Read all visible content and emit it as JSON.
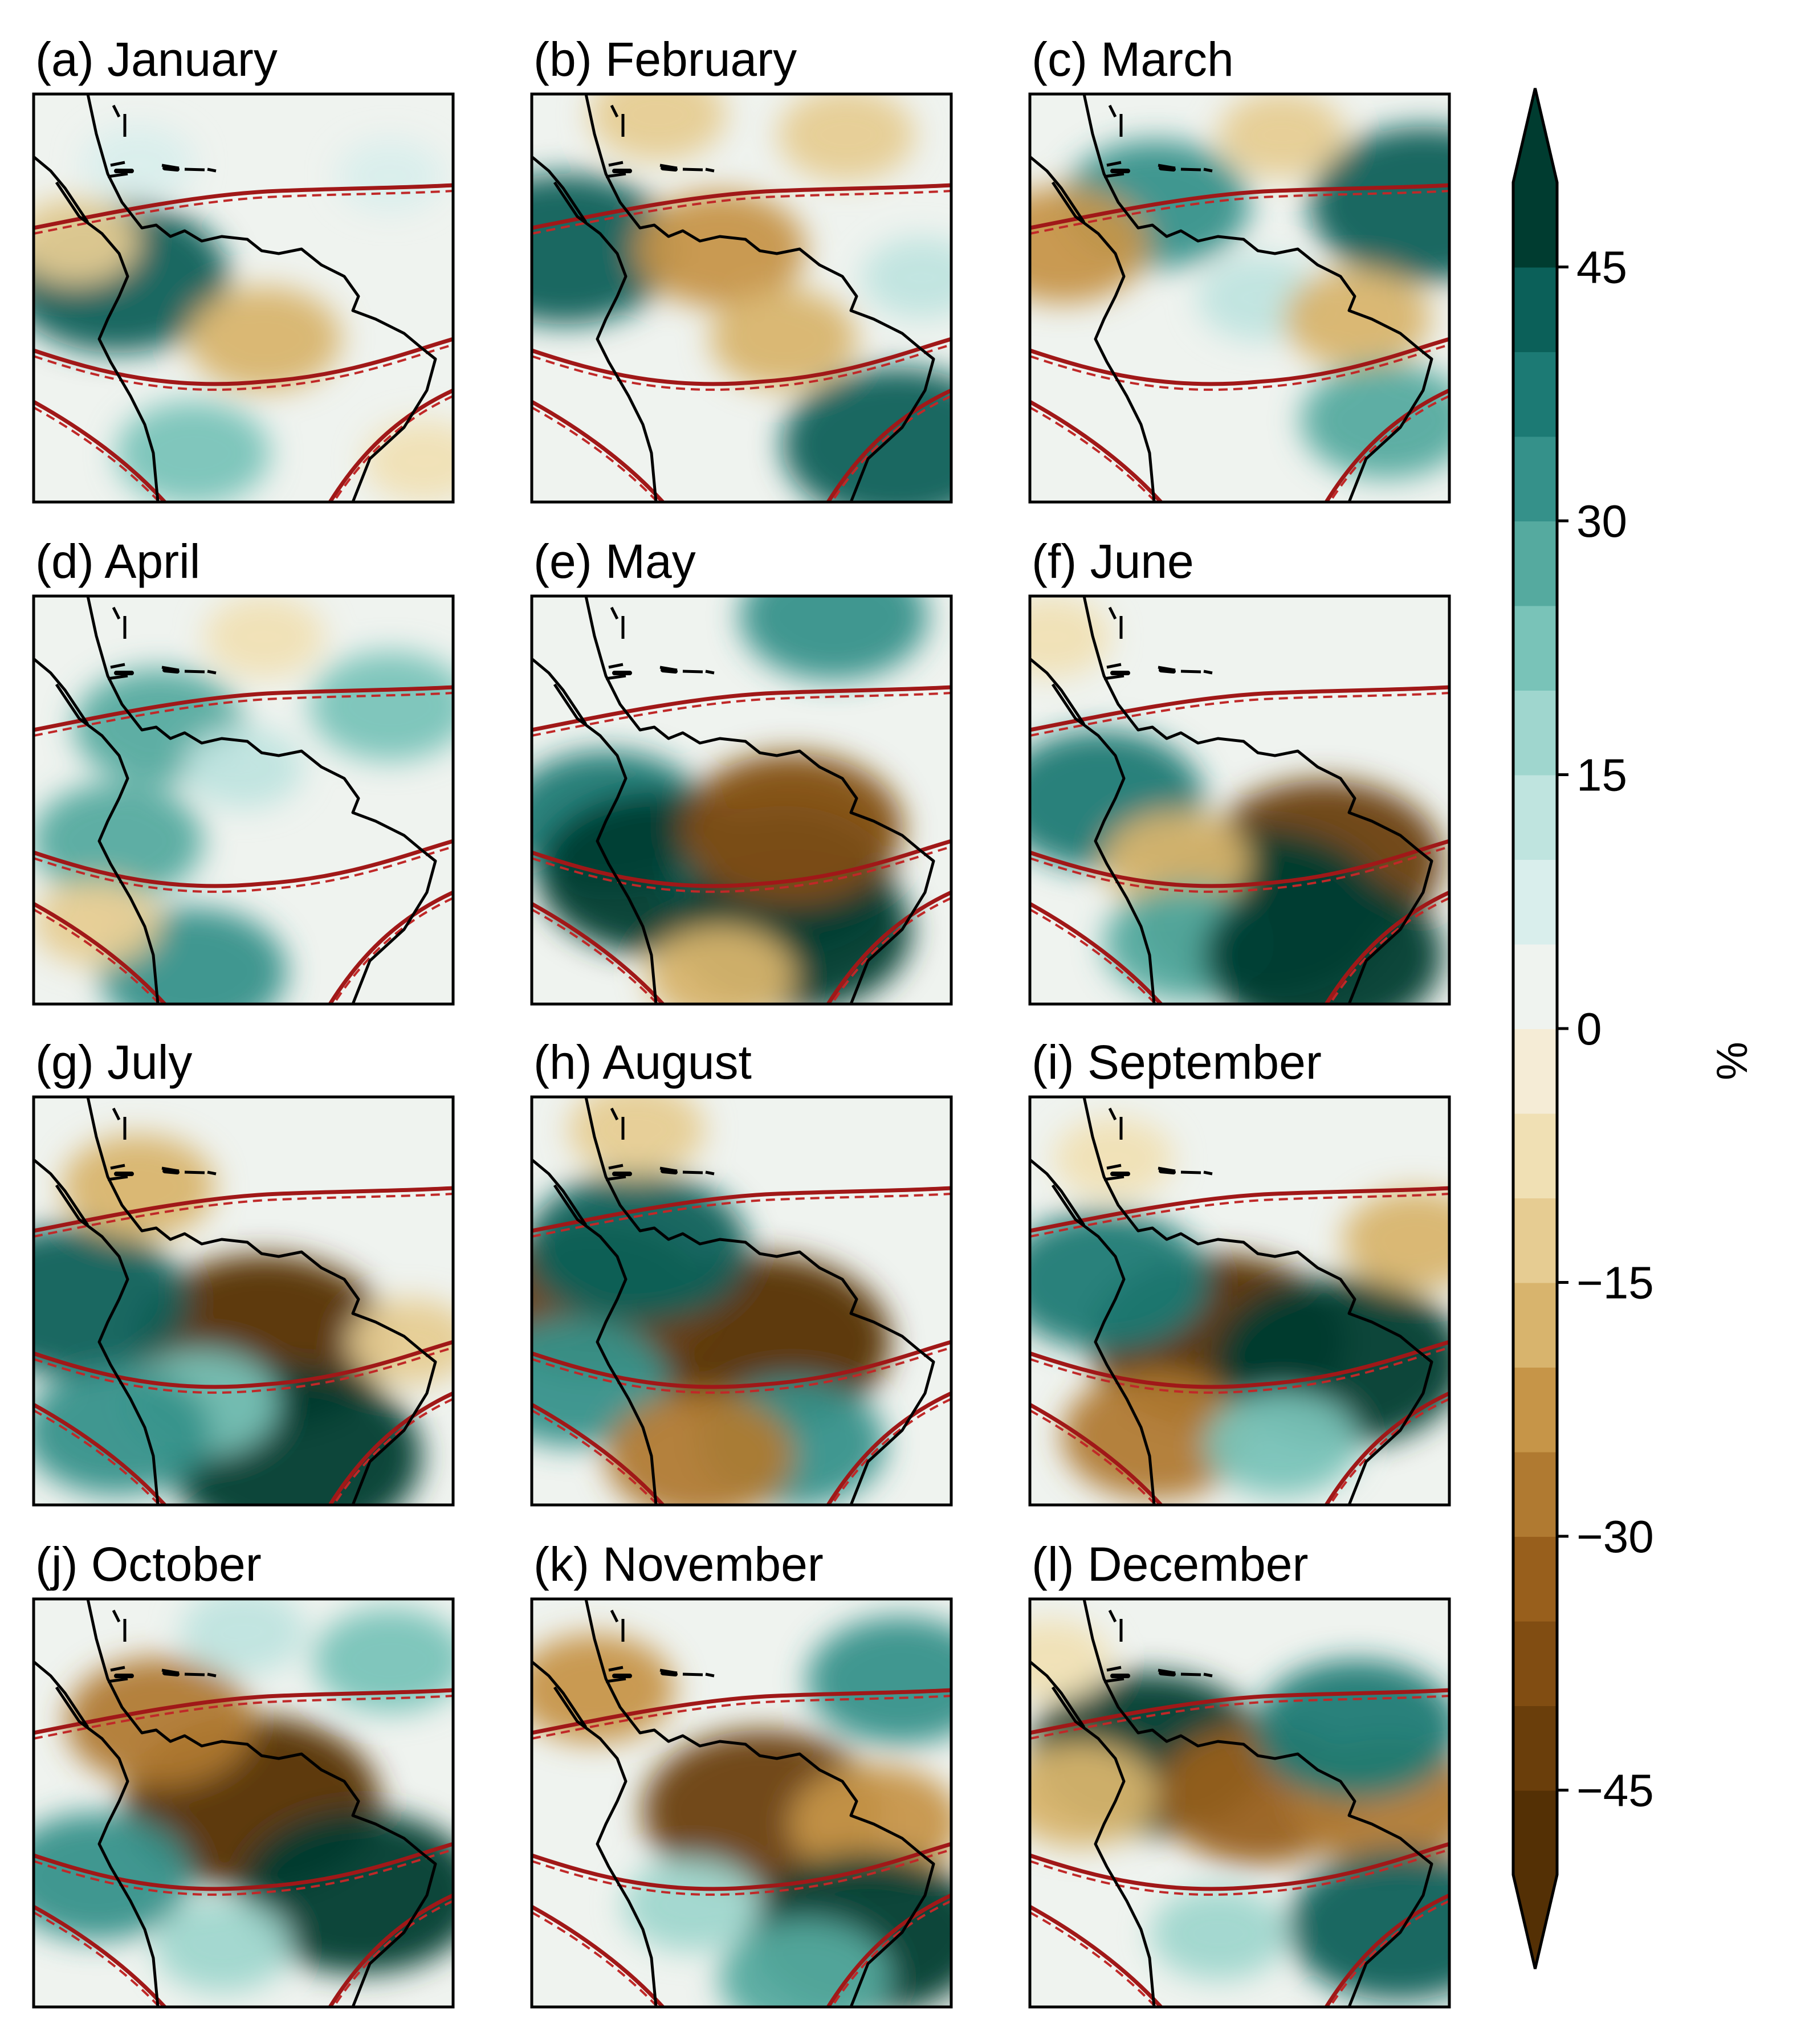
{
  "chart_data": {
    "type": "heatmap",
    "unit_label": "%",
    "colorbar": {
      "min": -50,
      "max": 50,
      "step": 5,
      "ticks": [
        -45,
        -30,
        -15,
        0,
        15,
        30,
        45
      ],
      "tick_labels": [
        "−45",
        "−30",
        "−15",
        "0",
        "15",
        "30",
        "45"
      ],
      "extend": "both",
      "colors": [
        "#543005",
        "#6a3e0b",
        "#814d12",
        "#985f1c",
        "#b07a31",
        "#c69548",
        "#d8b46d",
        "#e6cc92",
        "#f0e0b4",
        "#f5ecd6",
        "#eff3ef",
        "#d9eeec",
        "#bfe4df",
        "#9fd6ce",
        "#79c3b8",
        "#55aa9f",
        "#35918a",
        "#1c7a74",
        "#0b6059",
        "#003c30"
      ]
    },
    "panels": [
      {
        "label": "(a) January",
        "anomalies": [
          {
            "x": 0.2,
            "y": 0.45,
            "v": 40
          },
          {
            "x": 0.55,
            "y": 0.6,
            "v": -20
          },
          {
            "x": 0.38,
            "y": 0.88,
            "v": 20
          },
          {
            "x": 0.25,
            "y": 0.17,
            "v": 8
          },
          {
            "x": 0.85,
            "y": 0.2,
            "v": 6
          },
          {
            "x": 0.93,
            "y": 0.9,
            "v": -10
          },
          {
            "x": 0.1,
            "y": 0.36,
            "v": -12
          }
        ]
      },
      {
        "label": "(b) February",
        "anomalies": [
          {
            "x": 0.08,
            "y": 0.38,
            "v": 40
          },
          {
            "x": 0.45,
            "y": 0.38,
            "v": -25
          },
          {
            "x": 0.6,
            "y": 0.6,
            "v": -18
          },
          {
            "x": 0.87,
            "y": 0.86,
            "v": 42
          },
          {
            "x": 0.3,
            "y": 0.05,
            "v": -15
          },
          {
            "x": 0.75,
            "y": 0.1,
            "v": -15
          },
          {
            "x": 0.93,
            "y": 0.45,
            "v": 10
          }
        ]
      },
      {
        "label": "(c) March",
        "anomalies": [
          {
            "x": 0.94,
            "y": 0.27,
            "v": 42
          },
          {
            "x": 0.3,
            "y": 0.27,
            "v": 30
          },
          {
            "x": 0.08,
            "y": 0.37,
            "v": -25
          },
          {
            "x": 0.55,
            "y": 0.5,
            "v": 12
          },
          {
            "x": 0.78,
            "y": 0.55,
            "v": -18
          },
          {
            "x": 0.85,
            "y": 0.8,
            "v": 25
          },
          {
            "x": 0.6,
            "y": 0.1,
            "v": -12
          }
        ]
      },
      {
        "label": "(d) April",
        "anomalies": [
          {
            "x": 0.3,
            "y": 0.32,
            "v": 25
          },
          {
            "x": 0.2,
            "y": 0.6,
            "v": 25
          },
          {
            "x": 0.85,
            "y": 0.27,
            "v": 22
          },
          {
            "x": 0.5,
            "y": 0.42,
            "v": 10
          },
          {
            "x": 0.38,
            "y": 0.92,
            "v": 30
          },
          {
            "x": 0.15,
            "y": 0.8,
            "v": -12
          },
          {
            "x": 0.55,
            "y": 0.1,
            "v": -10
          }
        ]
      },
      {
        "label": "(e) May",
        "anomalies": [
          {
            "x": 0.18,
            "y": 0.55,
            "v": 35
          },
          {
            "x": 0.3,
            "y": 0.68,
            "v": 45
          },
          {
            "x": 0.6,
            "y": 0.7,
            "v": 40
          },
          {
            "x": 0.62,
            "y": 0.82,
            "v": 45
          },
          {
            "x": 0.62,
            "y": 0.57,
            "v": -40
          },
          {
            "x": 0.72,
            "y": 0.05,
            "v": 30
          },
          {
            "x": 0.45,
            "y": 0.93,
            "v": -18
          }
        ]
      },
      {
        "label": "(f) June",
        "anomalies": [
          {
            "x": 0.7,
            "y": 0.65,
            "v": -45
          },
          {
            "x": 0.55,
            "y": 0.78,
            "v": 48
          },
          {
            "x": 0.17,
            "y": 0.5,
            "v": 35
          },
          {
            "x": 0.35,
            "y": 0.65,
            "v": -18
          },
          {
            "x": 0.38,
            "y": 0.85,
            "v": 25
          },
          {
            "x": 0.7,
            "y": 0.88,
            "v": 45
          },
          {
            "x": 0.05,
            "y": 0.1,
            "v": -10
          }
        ]
      },
      {
        "label": "(g) July",
        "anomalies": [
          {
            "x": 0.55,
            "y": 0.6,
            "v": -50
          },
          {
            "x": 0.62,
            "y": 0.88,
            "v": 50
          },
          {
            "x": 0.1,
            "y": 0.5,
            "v": 40
          },
          {
            "x": 0.4,
            "y": 0.75,
            "v": 20
          },
          {
            "x": 0.25,
            "y": 0.22,
            "v": -20
          },
          {
            "x": 0.2,
            "y": 0.82,
            "v": 30
          },
          {
            "x": 0.9,
            "y": 0.6,
            "v": -12
          }
        ]
      },
      {
        "label": "(h) August",
        "anomalies": [
          {
            "x": 0.55,
            "y": 0.6,
            "v": -50
          },
          {
            "x": 0.15,
            "y": 0.5,
            "v": -42
          },
          {
            "x": 0.25,
            "y": 0.37,
            "v": 40
          },
          {
            "x": 0.1,
            "y": 0.7,
            "v": 30
          },
          {
            "x": 0.62,
            "y": 0.85,
            "v": 30
          },
          {
            "x": 0.4,
            "y": 0.88,
            "v": -30
          },
          {
            "x": 0.25,
            "y": 0.08,
            "v": -15
          }
        ]
      },
      {
        "label": "(i) September",
        "anomalies": [
          {
            "x": 0.45,
            "y": 0.6,
            "v": -50
          },
          {
            "x": 0.74,
            "y": 0.65,
            "v": 48
          },
          {
            "x": 0.18,
            "y": 0.45,
            "v": 35
          },
          {
            "x": 0.3,
            "y": 0.83,
            "v": -30
          },
          {
            "x": 0.6,
            "y": 0.85,
            "v": 20
          },
          {
            "x": 0.92,
            "y": 0.35,
            "v": -18
          },
          {
            "x": 0.2,
            "y": 0.15,
            "v": -10
          }
        ]
      },
      {
        "label": "(j) October",
        "anomalies": [
          {
            "x": 0.52,
            "y": 0.5,
            "v": -50
          },
          {
            "x": 0.3,
            "y": 0.3,
            "v": -30
          },
          {
            "x": 0.78,
            "y": 0.72,
            "v": 45
          },
          {
            "x": 0.15,
            "y": 0.68,
            "v": 30
          },
          {
            "x": 0.45,
            "y": 0.85,
            "v": 15
          },
          {
            "x": 0.85,
            "y": 0.15,
            "v": 20
          },
          {
            "x": 0.5,
            "y": 0.08,
            "v": 12
          }
        ]
      },
      {
        "label": "(k) November",
        "anomalies": [
          {
            "x": 0.55,
            "y": 0.52,
            "v": -45
          },
          {
            "x": 0.82,
            "y": 0.55,
            "v": -25
          },
          {
            "x": 0.8,
            "y": 0.82,
            "v": 45
          },
          {
            "x": 0.88,
            "y": 0.2,
            "v": 30
          },
          {
            "x": 0.15,
            "y": 0.22,
            "v": -22
          },
          {
            "x": 0.38,
            "y": 0.75,
            "v": 15
          },
          {
            "x": 0.65,
            "y": 0.93,
            "v": 25
          }
        ]
      },
      {
        "label": "(l) December",
        "anomalies": [
          {
            "x": 0.28,
            "y": 0.38,
            "v": 45
          },
          {
            "x": 0.55,
            "y": 0.48,
            "v": -35
          },
          {
            "x": 0.85,
            "y": 0.5,
            "v": -30
          },
          {
            "x": 0.78,
            "y": 0.32,
            "v": 35
          },
          {
            "x": 0.88,
            "y": 0.8,
            "v": 40
          },
          {
            "x": 0.12,
            "y": 0.48,
            "v": -20
          },
          {
            "x": 0.45,
            "y": 0.82,
            "v": 15
          },
          {
            "x": 0.05,
            "y": 0.15,
            "v": -10
          }
        ]
      }
    ]
  }
}
